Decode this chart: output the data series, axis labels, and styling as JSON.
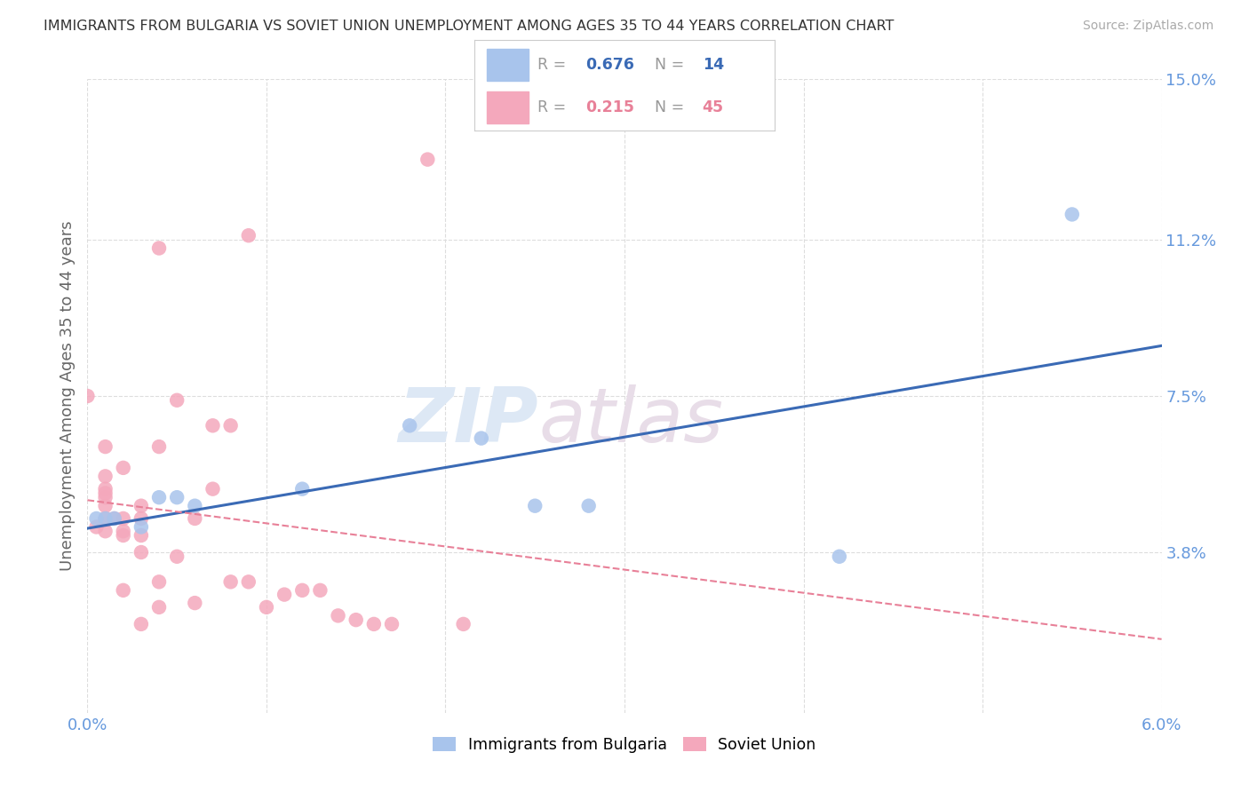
{
  "title": "IMMIGRANTS FROM BULGARIA VS SOVIET UNION UNEMPLOYMENT AMONG AGES 35 TO 44 YEARS CORRELATION CHART",
  "source": "Source: ZipAtlas.com",
  "ylabel": "Unemployment Among Ages 35 to 44 years",
  "xlim": [
    0.0,
    0.06
  ],
  "ylim": [
    0.0,
    0.15
  ],
  "xticks": [
    0.0,
    0.01,
    0.02,
    0.03,
    0.04,
    0.05,
    0.06
  ],
  "xticklabels": [
    "0.0%",
    "",
    "",
    "",
    "",
    "",
    "6.0%"
  ],
  "ytick_positions": [
    0.038,
    0.075,
    0.112,
    0.15
  ],
  "yticklabels": [
    "3.8%",
    "7.5%",
    "11.2%",
    "15.0%"
  ],
  "bulgaria_color": "#a8c4ec",
  "soviet_color": "#f4a8bc",
  "bulgaria_line_color": "#3a6ab5",
  "soviet_line_color": "#e88098",
  "bulgaria_R": 0.676,
  "bulgaria_N": 14,
  "soviet_R": 0.215,
  "soviet_N": 45,
  "bulgaria_points_x": [
    0.0005,
    0.001,
    0.0015,
    0.003,
    0.004,
    0.005,
    0.006,
    0.012,
    0.018,
    0.022,
    0.025,
    0.028,
    0.042,
    0.055
  ],
  "bulgaria_points_y": [
    0.046,
    0.046,
    0.046,
    0.044,
    0.051,
    0.051,
    0.049,
    0.053,
    0.068,
    0.065,
    0.049,
    0.049,
    0.037,
    0.118
  ],
  "soviet_points_x": [
    0.0,
    0.0005,
    0.001,
    0.001,
    0.001,
    0.001,
    0.001,
    0.001,
    0.001,
    0.001,
    0.0015,
    0.002,
    0.002,
    0.002,
    0.002,
    0.002,
    0.003,
    0.003,
    0.003,
    0.003,
    0.003,
    0.004,
    0.004,
    0.004,
    0.004,
    0.005,
    0.005,
    0.006,
    0.006,
    0.007,
    0.007,
    0.008,
    0.008,
    0.009,
    0.009,
    0.01,
    0.011,
    0.012,
    0.013,
    0.014,
    0.015,
    0.016,
    0.017,
    0.019,
    0.021
  ],
  "soviet_points_y": [
    0.075,
    0.044,
    0.043,
    0.046,
    0.049,
    0.051,
    0.052,
    0.053,
    0.056,
    0.063,
    0.046,
    0.029,
    0.042,
    0.043,
    0.046,
    0.058,
    0.021,
    0.038,
    0.042,
    0.046,
    0.049,
    0.025,
    0.031,
    0.063,
    0.11,
    0.037,
    0.074,
    0.026,
    0.046,
    0.053,
    0.068,
    0.031,
    0.068,
    0.031,
    0.113,
    0.025,
    0.028,
    0.029,
    0.029,
    0.023,
    0.022,
    0.021,
    0.021,
    0.131,
    0.021
  ],
  "watermark_zip": "ZIP",
  "watermark_atlas": "atlas",
  "bg_color": "#ffffff",
  "grid_color": "#dddddd",
  "title_color": "#333333",
  "axis_label_color": "#666666",
  "ytick_color": "#6699dd",
  "xtick_color": "#6699dd",
  "legend_border_color": "#cccccc"
}
